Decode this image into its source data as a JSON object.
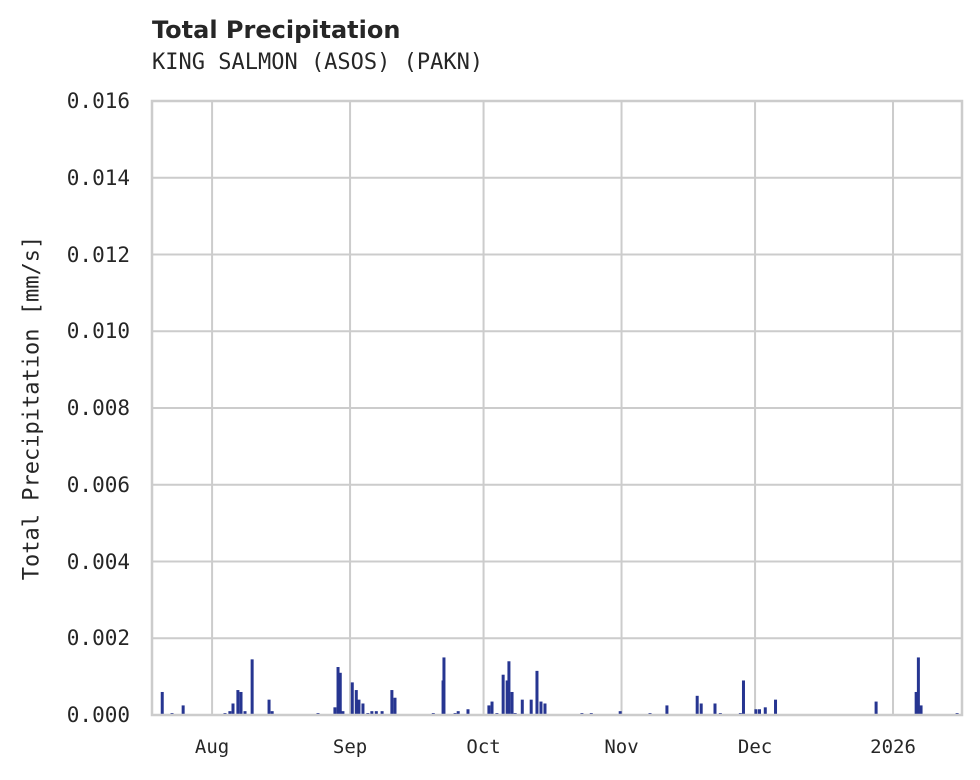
{
  "header": {
    "title": "Total Precipitation",
    "subtitle": "KING SALMON (ASOS) (PAKN)"
  },
  "colors": {
    "bar": "#263591",
    "grid": "#cccccc",
    "text": "#262626"
  },
  "chart_data": {
    "type": "bar",
    "title": "Total Precipitation",
    "subtitle": "KING SALMON (ASOS) (PAKN)",
    "xlabel": "",
    "ylabel": "Total Precipitation [mm/s]",
    "ylim": [
      0,
      0.016
    ],
    "yticks": [
      "0.000",
      "0.002",
      "0.004",
      "0.006",
      "0.008",
      "0.010",
      "0.012",
      "0.014",
      "0.016"
    ],
    "xticks": [
      "Aug",
      "Sep",
      "Oct",
      "Nov",
      "Dec",
      "2026"
    ],
    "grid": true,
    "legend": null,
    "x_units": "days since Aug 1 (approx.)",
    "x_range_days": [
      -13.5,
      168.5
    ],
    "points": [
      [
        -11.2,
        0.0006
      ],
      [
        -9.0,
        5e-05
      ],
      [
        -6.5,
        0.00025
      ],
      [
        2.9,
        5e-05
      ],
      [
        4.0,
        0.0001
      ],
      [
        4.7,
        0.0003
      ],
      [
        5.8,
        0.00065
      ],
      [
        6.5,
        0.0006
      ],
      [
        7.4,
        0.0001
      ],
      [
        9.0,
        0.00145
      ],
      [
        12.8,
        0.0004
      ],
      [
        13.5,
        0.0001
      ],
      [
        23.8,
        5e-05
      ],
      [
        27.6,
        0.0002
      ],
      [
        28.3,
        0.00125
      ],
      [
        28.8,
        0.0011
      ],
      [
        29.4,
        0.0001
      ],
      [
        31.5,
        0.00085
      ],
      [
        32.4,
        0.00065
      ],
      [
        33.0,
        0.0004
      ],
      [
        33.9,
        0.0003
      ],
      [
        35.0,
        5e-05
      ],
      [
        35.9,
        0.0001
      ],
      [
        36.9,
        0.0001
      ],
      [
        38.2,
        0.0001
      ],
      [
        40.4,
        0.00065
      ],
      [
        41.1,
        0.00045
      ],
      [
        49.7,
        5e-05
      ],
      [
        51.9,
        0.0009
      ],
      [
        52.1,
        0.0015
      ],
      [
        54.6,
        5e-05
      ],
      [
        55.3,
        0.0001
      ],
      [
        57.5,
        0.00015
      ],
      [
        62.2,
        0.00025
      ],
      [
        62.9,
        0.00035
      ],
      [
        64.0,
        5e-05
      ],
      [
        65.4,
        0.00105
      ],
      [
        66.3,
        0.0009
      ],
      [
        66.7,
        0.0014
      ],
      [
        67.4,
        0.0006
      ],
      [
        68.1,
        5e-05
      ],
      [
        69.7,
        0.0004
      ],
      [
        71.7,
        0.0004
      ],
      [
        73.0,
        0.00115
      ],
      [
        73.9,
        0.00035
      ],
      [
        74.8,
        0.0003
      ],
      [
        83.1,
        5e-05
      ],
      [
        85.2,
        5e-05
      ],
      [
        91.7,
        0.0001
      ],
      [
        98.4,
        5e-05
      ],
      [
        102.2,
        0.00025
      ],
      [
        109.0,
        0.0005
      ],
      [
        109.9,
        0.0003
      ],
      [
        113.0,
        0.0003
      ],
      [
        114.2,
        5e-05
      ],
      [
        118.7,
        5e-05
      ],
      [
        119.4,
        0.0009
      ],
      [
        122.2,
        0.00015
      ],
      [
        123.0,
        0.00015
      ],
      [
        124.3,
        0.0002
      ],
      [
        126.6,
        0.0004
      ],
      [
        149.2,
        0.00035
      ],
      [
        158.2,
        0.0006
      ],
      [
        158.7,
        0.0015
      ],
      [
        159.3,
        0.00025
      ],
      [
        167.4,
        5e-05
      ]
    ]
  }
}
